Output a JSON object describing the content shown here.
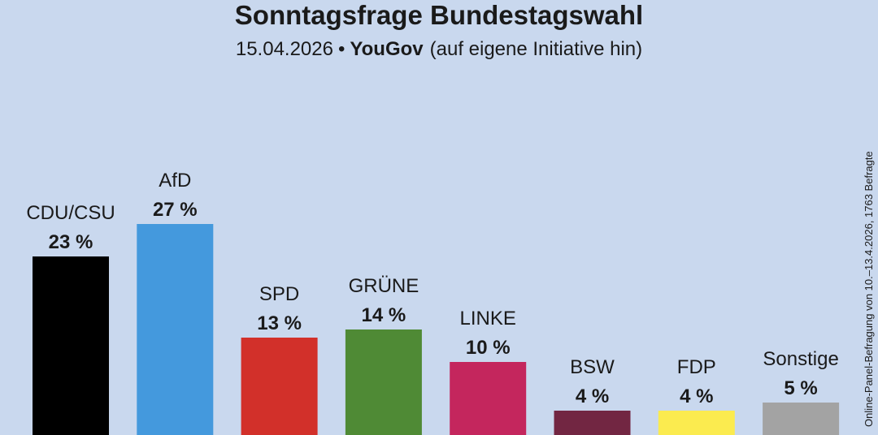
{
  "chart_data": {
    "type": "bar",
    "title": "Sonntagsfrage Bundestagswahl",
    "subtitle": {
      "date": "15.04.2026",
      "separator": "•",
      "institute": "YouGov",
      "note": "(auf eigene Initiative hin)"
    },
    "side_note": "Online-Panel-Befragung von 10.–13.4.2026, 1763 Befragte",
    "categories": [
      "CDU/CSU",
      "AfD",
      "SPD",
      "GRÜNE",
      "LINKE",
      "BSW",
      "FDP",
      "Sonstige"
    ],
    "values": [
      23,
      27,
      13,
      14,
      10,
      4,
      4,
      5
    ],
    "value_labels": [
      "23 %",
      "27 %",
      "13 %",
      "14 %",
      "10 %",
      "4 %",
      "4 %",
      "5 %"
    ],
    "colors": [
      "#000000",
      "#4499dd",
      "#d2302a",
      "#4f8a35",
      "#c4265d",
      "#722642",
      "#fbeb4f",
      "#a3a3a3"
    ],
    "xlabel": "",
    "ylabel": "",
    "ylim": [
      0,
      40
    ],
    "grid": false,
    "legend": "none"
  }
}
